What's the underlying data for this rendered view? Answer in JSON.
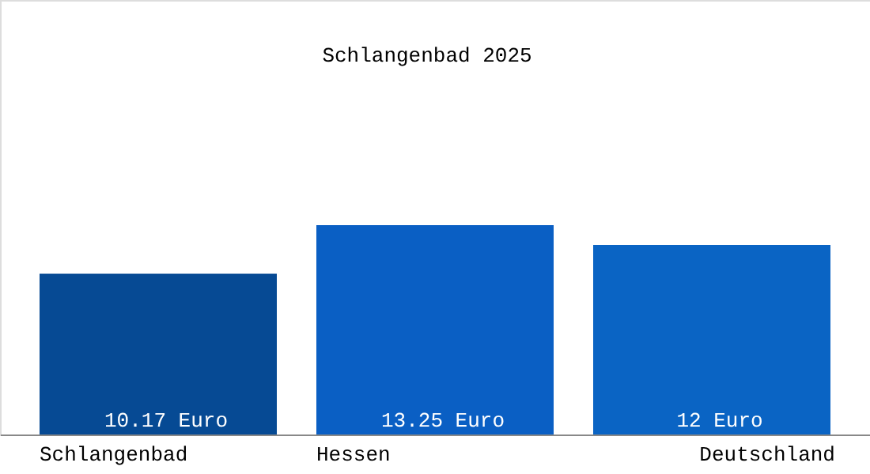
{
  "chart_data": {
    "type": "bar",
    "title": "Schlangenbad 2025",
    "categories": [
      "Schlangenbad",
      "Hessen",
      "Deutschland"
    ],
    "values": [
      10.17,
      13.25,
      12
    ],
    "colors": [
      "#064a94",
      "#0a5fc4",
      "#0a64c4"
    ],
    "value_labels": [
      "10.17 Euro",
      "13.25 Euro",
      "12 Euro"
    ],
    "tick_labels": "x",
    "grid": false
  }
}
